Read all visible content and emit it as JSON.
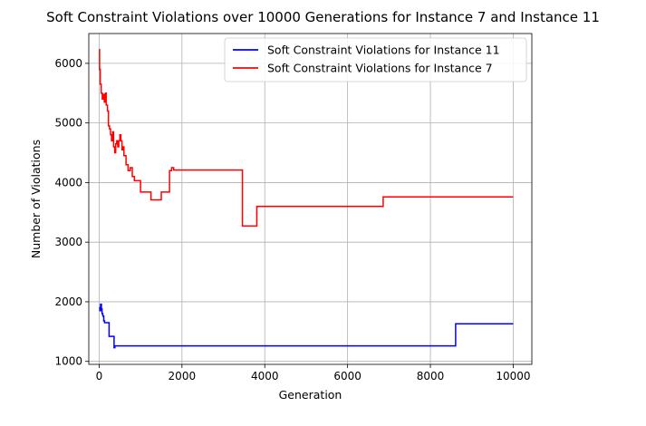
{
  "chart_data": {
    "type": "line",
    "title": "Soft Constraint Violations over 10000 Generations for Instance 7 and Instance 11",
    "xlabel": "Generation",
    "ylabel": "Number of Violations",
    "xlim": [
      -250,
      10450
    ],
    "ylim": [
      950,
      6500
    ],
    "xticks": [
      "0",
      "2000",
      "4000",
      "6000",
      "8000",
      "10000"
    ],
    "yticks": [
      "1000",
      "2000",
      "3000",
      "4000",
      "5000",
      "6000"
    ],
    "grid": true,
    "legend_position": "top-right",
    "series": [
      {
        "name": "Soft Constraint Violations for Instance 11",
        "color": "#0000ff",
        "x": [
          0,
          20,
          35,
          55,
          70,
          90,
          110,
          130,
          150,
          200,
          240,
          300,
          350,
          360,
          380,
          8600,
          8610,
          10000
        ],
        "y": [
          1900,
          1850,
          1960,
          1880,
          1800,
          1760,
          1680,
          1650,
          1650,
          1650,
          1420,
          1420,
          1420,
          1230,
          1260,
          1260,
          1630,
          1630
        ]
      },
      {
        "name": "Soft Constraint Violations for Instance 7",
        "color": "#ff0000",
        "x": [
          0,
          10,
          25,
          50,
          75,
          100,
          125,
          150,
          170,
          200,
          225,
          250,
          275,
          300,
          325,
          350,
          375,
          400,
          425,
          450,
          475,
          500,
          525,
          550,
          575,
          600,
          650,
          700,
          750,
          800,
          850,
          900,
          1000,
          1250,
          1500,
          1700,
          1750,
          1800,
          3450,
          3460,
          3800,
          3810,
          6850,
          6860,
          10000
        ],
        "y": [
          6230,
          5900,
          5650,
          5500,
          5400,
          5480,
          5350,
          5500,
          5300,
          5200,
          4950,
          4900,
          4800,
          4700,
          4850,
          4600,
          4500,
          4650,
          4700,
          4600,
          4700,
          4800,
          4700,
          4550,
          4600,
          4450,
          4300,
          4200,
          4250,
          4100,
          4030,
          4030,
          3840,
          3710,
          3840,
          4200,
          4250,
          4210,
          4210,
          3270,
          3270,
          3600,
          3600,
          3760,
          3760
        ]
      }
    ]
  }
}
